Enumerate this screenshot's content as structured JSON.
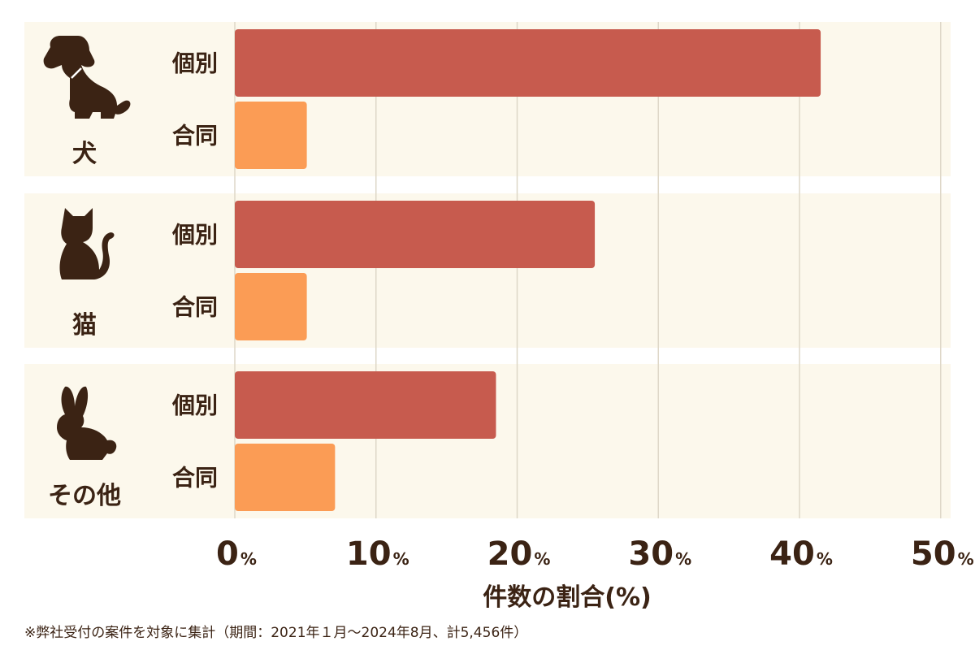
{
  "chart_data": {
    "type": "bar",
    "orientation": "horizontal",
    "categories": [
      "犬",
      "猫",
      "その他"
    ],
    "sub_categories": [
      "個別",
      "合同"
    ],
    "series": [
      {
        "name": "個別",
        "values": [
          41.5,
          25.5,
          18.5
        ]
      },
      {
        "name": "合同",
        "values": [
          5.1,
          5.1,
          7.1
        ]
      }
    ],
    "x_ticks": [
      0,
      10,
      20,
      30,
      40,
      50
    ],
    "tick_unit": "%",
    "xlim": [
      0,
      50
    ],
    "xlabel": "件数の割合(%)",
    "grid": true,
    "colors": {
      "individual": "#c75b4e",
      "group": "#fb9c55",
      "panel": "#fcf8ec",
      "grid": "#ded7c8",
      "text": "#3b2314"
    },
    "icons": [
      "dog-icon",
      "cat-icon",
      "rabbit-icon"
    ]
  },
  "footnote": "※弊社受付の案件を対象に集計（期間：2021年１月～2024年8月、計5,456件）"
}
